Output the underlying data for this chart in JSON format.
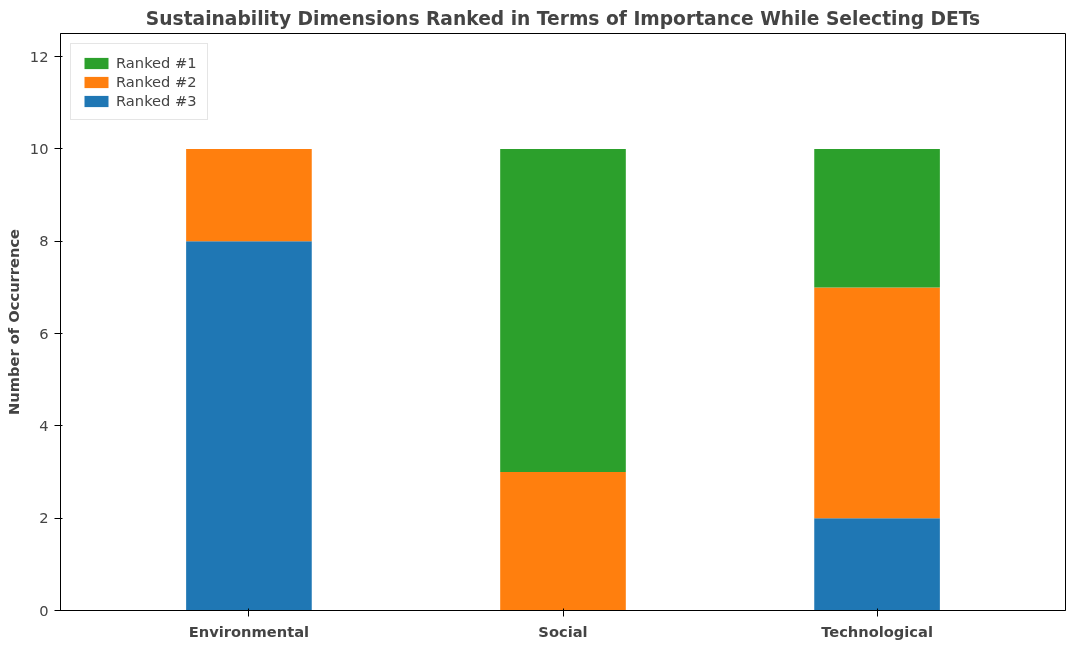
{
  "chart_data": {
    "type": "bar",
    "title": "Sustainability Dimensions Ranked in Terms of Importance While Selecting DETs",
    "ylabel": "Number of Occurrence",
    "categories": [
      "Environmental",
      "Social",
      "Technological"
    ],
    "stacked": true,
    "series": [
      {
        "name": "Ranked #3",
        "color": "#1f77b4",
        "values": [
          8,
          0,
          2
        ]
      },
      {
        "name": "Ranked #2",
        "color": "#ff7f0e",
        "values": [
          2,
          3,
          5
        ]
      },
      {
        "name": "Ranked #1",
        "color": "#2ca02c",
        "values": [
          0,
          7,
          3
        ]
      }
    ],
    "ylim": [
      0,
      12.5
    ],
    "yticks": [
      0,
      2,
      4,
      6,
      8,
      10,
      12
    ],
    "grid": false,
    "legend": "top left"
  }
}
